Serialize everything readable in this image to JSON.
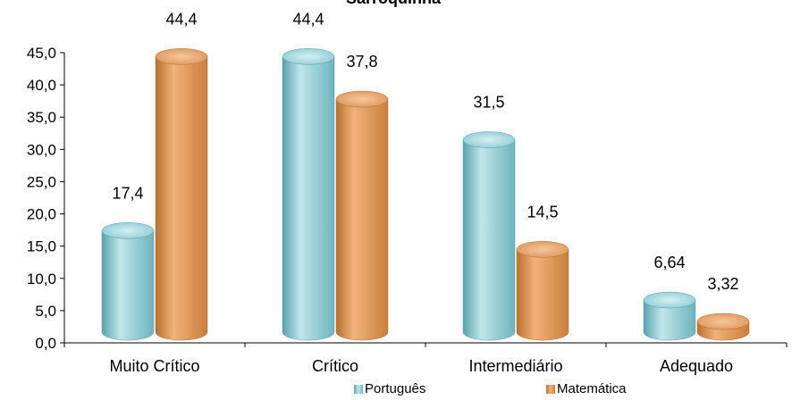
{
  "chart_data": {
    "type": "bar",
    "title": "Sarroquinha",
    "categories": [
      "Muito Crítico",
      "Crítico",
      "Intermediário",
      "Adequado"
    ],
    "series": [
      {
        "name": "Português",
        "values": [
          17.4,
          44.4,
          31.5,
          6.64
        ],
        "labels": [
          "17,4",
          "44,4",
          "31,5",
          "6,64"
        ],
        "color": "#7fc4cc"
      },
      {
        "name": "Matemática",
        "values": [
          44.4,
          37.8,
          14.5,
          3.32
        ],
        "labels": [
          "44,4",
          "37,8",
          "14,5",
          "3,32"
        ],
        "color": "#d9904e"
      }
    ],
    "yticks": [
      "0,0",
      "5,0",
      "10,0",
      "15,0",
      "20,0",
      "25,0",
      "30,0",
      "35,0",
      "40,0",
      "45,0"
    ],
    "ylim": [
      0,
      45
    ],
    "grid": false,
    "legend_position": "bottom"
  },
  "legend": {
    "portugues": "Português",
    "matematica": "Matemática"
  }
}
